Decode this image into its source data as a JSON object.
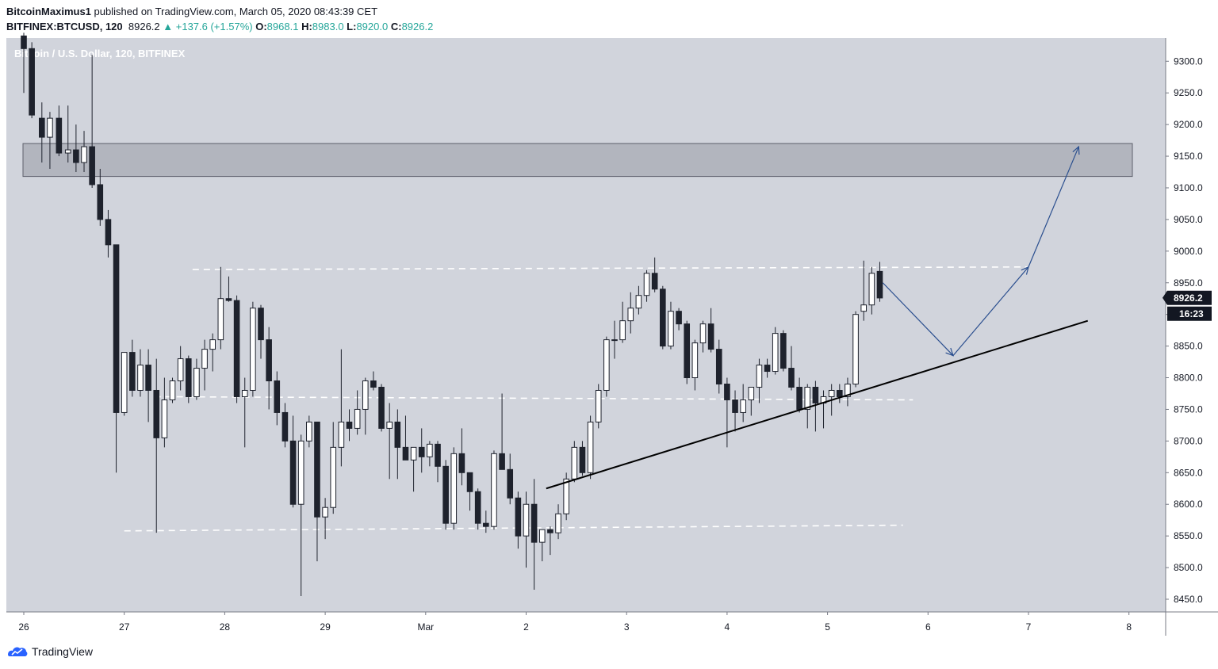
{
  "header": {
    "author": "BitcoinMaximus1",
    "published_text": "published on TradingView.com, March 05, 2020 08:43:39 CET"
  },
  "symbol_line": {
    "symbol": "BITFINEX:BTCUSD, 120",
    "last": "8926.2",
    "change": "▲ +137.6 (+1.57%)",
    "o_label": "O:",
    "o": "8968.1",
    "h_label": "H:",
    "h": "8983.0",
    "l_label": "L:",
    "l": "8920.0",
    "c_label": "C:",
    "c": "8926.2"
  },
  "watermark": "Bitcoin / U.S. Dollar, 120, BITFINEX",
  "footer": {
    "brand": "TradingView"
  },
  "colors": {
    "background": "#d1d4dc",
    "bull": "#ffffff",
    "bear": "#1e222d",
    "zone": "#b2b5be",
    "arrow": "#2b4f8f",
    "price_tag": "#131722"
  },
  "chart_data": {
    "type": "candlestick",
    "title": "Bitcoin / U.S. Dollar, 120, BITFINEX",
    "x_ticks": [
      "26",
      "27",
      "28",
      "29",
      "Mar",
      "2",
      "3",
      "4",
      "5",
      "6",
      "7",
      "8"
    ],
    "y_ticks": [
      "8450.0",
      "8500.0",
      "8550.0",
      "8600.0",
      "8650.0",
      "8700.0",
      "8750.0",
      "8800.0",
      "8850.0",
      "8900.0",
      "8950.0",
      "9000.0",
      "9050.0",
      "9100.0",
      "9150.0",
      "9200.0",
      "9250.0",
      "9300.0"
    ],
    "ylim": [
      8420,
      9345
    ],
    "xlim": [
      0,
      12.4
    ],
    "last_price_tag": "8926.2",
    "countdown_tag": "16:23",
    "candles": [
      [
        0.0,
        9340,
        9345,
        9250,
        9320
      ],
      [
        0.08,
        9320,
        9330,
        9210,
        9215
      ],
      [
        0.18,
        9210,
        9235,
        9140,
        9180
      ],
      [
        0.26,
        9180,
        9220,
        9130,
        9210
      ],
      [
        0.35,
        9210,
        9230,
        9150,
        9155
      ],
      [
        0.44,
        9155,
        9230,
        9140,
        9160
      ],
      [
        0.52,
        9160,
        9200,
        9125,
        9140
      ],
      [
        0.6,
        9140,
        9190,
        9125,
        9165
      ],
      [
        0.68,
        9165,
        9310,
        9100,
        9105
      ],
      [
        0.76,
        9105,
        9130,
        9040,
        9050
      ],
      [
        0.84,
        9050,
        9065,
        8990,
        9010
      ],
      [
        0.92,
        9010,
        9010,
        8650,
        8745
      ],
      [
        1.0,
        8745,
        8840,
        8740,
        8840
      ],
      [
        1.08,
        8840,
        8860,
        8770,
        8780
      ],
      [
        1.16,
        8780,
        8845,
        8770,
        8820
      ],
      [
        1.24,
        8820,
        8845,
        8730,
        8780
      ],
      [
        1.32,
        8780,
        8830,
        8555,
        8705
      ],
      [
        1.4,
        8705,
        8800,
        8690,
        8765
      ],
      [
        1.48,
        8765,
        8800,
        8760,
        8795
      ],
      [
        1.56,
        8795,
        8850,
        8780,
        8830
      ],
      [
        1.64,
        8830,
        8835,
        8760,
        8770
      ],
      [
        1.72,
        8770,
        8830,
        8765,
        8815
      ],
      [
        1.8,
        8815,
        8860,
        8780,
        8845
      ],
      [
        1.88,
        8845,
        8870,
        8810,
        8860
      ],
      [
        1.96,
        8860,
        8975,
        8845,
        8925
      ],
      [
        2.04,
        8925,
        8960,
        8920,
        8922
      ],
      [
        2.12,
        8922,
        8930,
        8760,
        8770
      ],
      [
        2.2,
        8770,
        8800,
        8690,
        8780
      ],
      [
        2.28,
        8780,
        8920,
        8770,
        8910
      ],
      [
        2.36,
        8910,
        8915,
        8830,
        8860
      ],
      [
        2.44,
        8860,
        8880,
        8750,
        8795
      ],
      [
        2.52,
        8795,
        8810,
        8725,
        8745
      ],
      [
        2.6,
        8745,
        8760,
        8690,
        8700
      ],
      [
        2.68,
        8700,
        8740,
        8595,
        8600
      ],
      [
        2.76,
        8600,
        8710,
        8455,
        8700
      ],
      [
        2.84,
        8700,
        8740,
        8690,
        8730
      ],
      [
        2.92,
        8730,
        8730,
        8510,
        8580
      ],
      [
        3.0,
        8580,
        8610,
        8545,
        8595
      ],
      [
        3.08,
        8595,
        8730,
        8585,
        8690
      ],
      [
        3.16,
        8690,
        8845,
        8660,
        8730
      ],
      [
        3.24,
        8730,
        8750,
        8700,
        8720
      ],
      [
        3.32,
        8720,
        8780,
        8710,
        8750
      ],
      [
        3.4,
        8750,
        8800,
        8710,
        8795
      ],
      [
        3.48,
        8795,
        8810,
        8780,
        8785
      ],
      [
        3.56,
        8785,
        8790,
        8715,
        8720
      ],
      [
        3.64,
        8720,
        8760,
        8640,
        8730
      ],
      [
        3.72,
        8730,
        8750,
        8640,
        8690
      ],
      [
        3.8,
        8690,
        8740,
        8670,
        8670
      ],
      [
        3.88,
        8670,
        8690,
        8620,
        8690
      ],
      [
        3.96,
        8690,
        8720,
        8650,
        8675
      ],
      [
        4.04,
        8675,
        8700,
        8660,
        8695
      ],
      [
        4.12,
        8695,
        8700,
        8635,
        8660
      ],
      [
        4.2,
        8660,
        8670,
        8560,
        8570
      ],
      [
        4.28,
        8570,
        8690,
        8560,
        8680
      ],
      [
        4.36,
        8680,
        8720,
        8630,
        8650
      ],
      [
        4.44,
        8650,
        8650,
        8590,
        8620
      ],
      [
        4.52,
        8620,
        8625,
        8560,
        8570
      ],
      [
        4.6,
        8570,
        8590,
        8555,
        8565
      ],
      [
        4.68,
        8565,
        8685,
        8560,
        8680
      ],
      [
        4.76,
        8680,
        8775,
        8660,
        8655
      ],
      [
        4.84,
        8655,
        8680,
        8600,
        8610
      ],
      [
        4.92,
        8610,
        8620,
        8530,
        8550
      ],
      [
        5.0,
        8550,
        8620,
        8500,
        8600
      ],
      [
        5.08,
        8600,
        8640,
        8465,
        8540
      ],
      [
        5.16,
        8540,
        8555,
        8510,
        8560
      ],
      [
        5.24,
        8560,
        8565,
        8520,
        8555
      ],
      [
        5.32,
        8555,
        8600,
        8545,
        8585
      ],
      [
        5.4,
        8585,
        8650,
        8575,
        8640
      ],
      [
        5.48,
        8640,
        8700,
        8635,
        8690
      ],
      [
        5.56,
        8690,
        8700,
        8645,
        8650
      ],
      [
        5.64,
        8650,
        8740,
        8640,
        8730
      ],
      [
        5.72,
        8730,
        8790,
        8720,
        8780
      ],
      [
        5.8,
        8780,
        8865,
        8770,
        8860
      ],
      [
        5.88,
        8860,
        8890,
        8830,
        8860
      ],
      [
        5.96,
        8860,
        8920,
        8855,
        8890
      ],
      [
        6.04,
        8890,
        8935,
        8870,
        8910
      ],
      [
        6.12,
        8910,
        8945,
        8900,
        8930
      ],
      [
        6.2,
        8930,
        8970,
        8920,
        8965
      ],
      [
        6.28,
        8965,
        8990,
        8935,
        8940
      ],
      [
        6.36,
        8940,
        8945,
        8845,
        8850
      ],
      [
        6.44,
        8850,
        8920,
        8845,
        8905
      ],
      [
        6.52,
        8905,
        8910,
        8875,
        8885
      ],
      [
        6.6,
        8885,
        8890,
        8790,
        8800
      ],
      [
        6.68,
        8800,
        8860,
        8780,
        8855
      ],
      [
        6.76,
        8855,
        8890,
        8840,
        8885
      ],
      [
        6.84,
        8885,
        8910,
        8840,
        8845
      ],
      [
        6.92,
        8845,
        8860,
        8775,
        8790
      ],
      [
        7.0,
        8790,
        8800,
        8690,
        8765
      ],
      [
        7.08,
        8765,
        8780,
        8715,
        8745
      ],
      [
        7.16,
        8745,
        8790,
        8730,
        8765
      ],
      [
        7.24,
        8765,
        8780,
        8740,
        8785
      ],
      [
        7.32,
        8785,
        8830,
        8760,
        8820
      ],
      [
        7.4,
        8820,
        8830,
        8800,
        8810
      ],
      [
        7.48,
        8810,
        8880,
        8805,
        8870
      ],
      [
        7.56,
        8870,
        8875,
        8810,
        8815
      ],
      [
        7.64,
        8815,
        8850,
        8780,
        8785
      ],
      [
        7.72,
        8785,
        8800,
        8745,
        8750
      ],
      [
        7.8,
        8750,
        8790,
        8720,
        8785
      ],
      [
        7.88,
        8785,
        8795,
        8715,
        8760
      ],
      [
        7.96,
        8760,
        8780,
        8720,
        8770
      ],
      [
        8.04,
        8770,
        8790,
        8740,
        8780
      ],
      [
        8.12,
        8780,
        8790,
        8760,
        8770
      ],
      [
        8.2,
        8770,
        8800,
        8755,
        8790
      ],
      [
        8.28,
        8790,
        8905,
        8785,
        8900
      ],
      [
        8.36,
        8905,
        8985,
        8890,
        8915
      ],
      [
        8.44,
        8915,
        8975,
        8900,
        8965
      ],
      [
        8.52,
        8968,
        8983,
        8920,
        8926
      ]
    ],
    "annotations": {
      "resistance_zone": [
        9118,
        9170
      ],
      "dashed_levels": [
        {
          "x1": 1.68,
          "x2": 10.0,
          "y1": 8971,
          "y2": 8975
        },
        {
          "x1": 1.3,
          "x2": 8.85,
          "y1": 8770,
          "y2": 8765
        },
        {
          "x1": 1.0,
          "x2": 8.75,
          "y1": 8558,
          "y2": 8567
        }
      ],
      "ascending_trendline": [
        [
          5.2,
          8625
        ],
        [
          10.59,
          8890
        ]
      ],
      "projection_path": [
        [
          8.55,
          8950
        ],
        [
          9.25,
          8835
        ],
        [
          10.0,
          8975
        ],
        [
          10.5,
          9165
        ]
      ]
    }
  }
}
